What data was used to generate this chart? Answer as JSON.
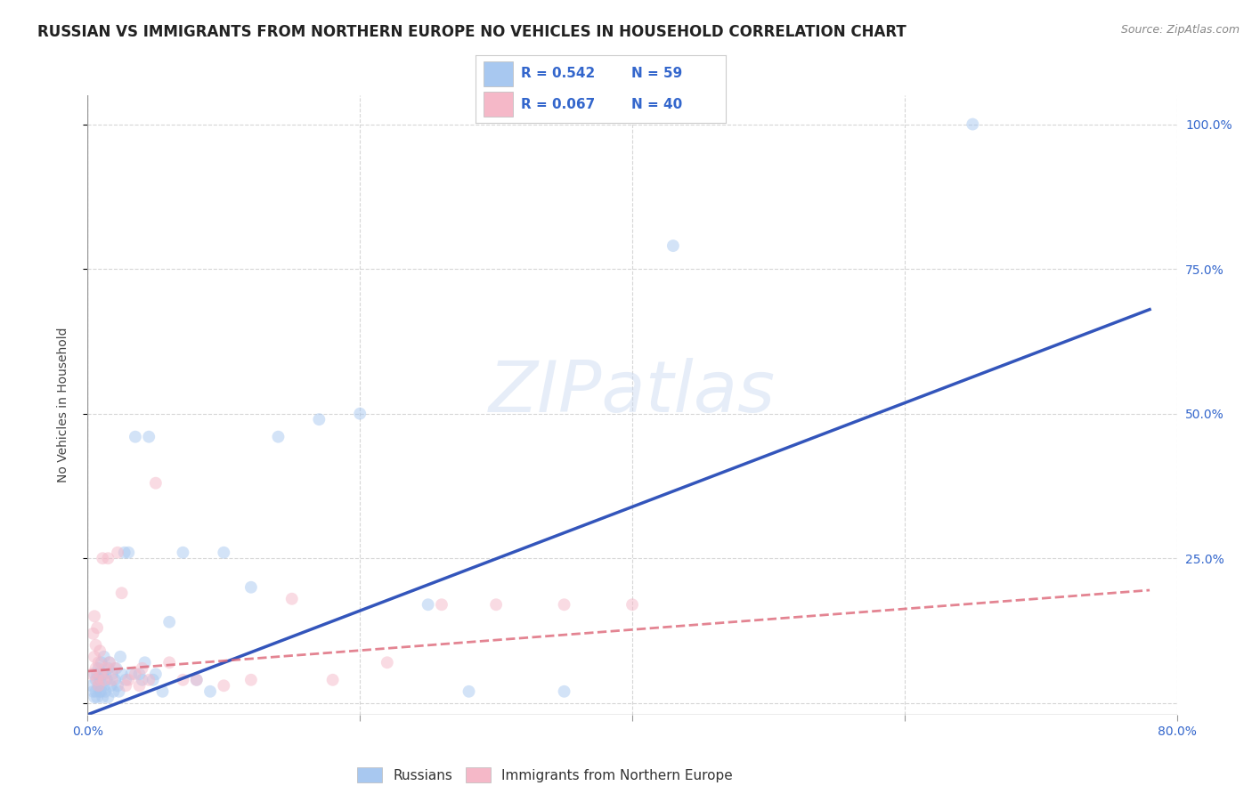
{
  "title": "RUSSIAN VS IMMIGRANTS FROM NORTHERN EUROPE NO VEHICLES IN HOUSEHOLD CORRELATION CHART",
  "source": "Source: ZipAtlas.com",
  "ylabel": "No Vehicles in Household",
  "xlim": [
    0.0,
    0.8
  ],
  "ylim": [
    -0.02,
    1.05
  ],
  "xticks": [
    0.0,
    0.2,
    0.4,
    0.6,
    0.8
  ],
  "xticklabels": [
    "0.0%",
    "",
    "",
    "",
    "80.0%"
  ],
  "yticks": [
    0.0,
    0.25,
    0.5,
    0.75,
    1.0
  ],
  "right_yticklabels": [
    "",
    "25.0%",
    "50.0%",
    "75.0%",
    "100.0%"
  ],
  "blue_color": "#A8C8F0",
  "pink_color": "#F5B8C8",
  "blue_line_color": "#3355BB",
  "pink_line_color": "#DD6677",
  "watermark": "ZIPatlas",
  "legend_R_blue": "0.542",
  "legend_N_blue": "59",
  "legend_R_pink": "0.067",
  "legend_N_pink": "40",
  "legend_label_blue": "Russians",
  "legend_label_pink": "Immigrants from Northern Europe",
  "blue_scatter_x": [
    0.003,
    0.004,
    0.005,
    0.005,
    0.006,
    0.006,
    0.007,
    0.007,
    0.008,
    0.008,
    0.009,
    0.009,
    0.01,
    0.01,
    0.011,
    0.011,
    0.012,
    0.012,
    0.013,
    0.013,
    0.014,
    0.015,
    0.015,
    0.016,
    0.017,
    0.018,
    0.019,
    0.02,
    0.021,
    0.022,
    0.023,
    0.024,
    0.025,
    0.027,
    0.028,
    0.03,
    0.032,
    0.035,
    0.038,
    0.04,
    0.042,
    0.045,
    0.048,
    0.05,
    0.055,
    0.06,
    0.07,
    0.08,
    0.09,
    0.1,
    0.12,
    0.14,
    0.17,
    0.2,
    0.25,
    0.28,
    0.35,
    0.43,
    0.65
  ],
  "blue_scatter_y": [
    0.03,
    0.02,
    0.05,
    0.01,
    0.04,
    0.02,
    0.05,
    0.01,
    0.06,
    0.03,
    0.02,
    0.04,
    0.07,
    0.02,
    0.05,
    0.01,
    0.08,
    0.03,
    0.05,
    0.02,
    0.04,
    0.06,
    0.01,
    0.07,
    0.03,
    0.05,
    0.02,
    0.04,
    0.06,
    0.03,
    0.02,
    0.08,
    0.05,
    0.26,
    0.04,
    0.26,
    0.05,
    0.46,
    0.05,
    0.04,
    0.07,
    0.46,
    0.04,
    0.05,
    0.02,
    0.14,
    0.26,
    0.04,
    0.02,
    0.26,
    0.2,
    0.46,
    0.49,
    0.5,
    0.17,
    0.02,
    0.02,
    0.79,
    1.0
  ],
  "pink_scatter_x": [
    0.003,
    0.004,
    0.005,
    0.005,
    0.006,
    0.006,
    0.007,
    0.007,
    0.008,
    0.008,
    0.009,
    0.01,
    0.011,
    0.012,
    0.013,
    0.015,
    0.016,
    0.018,
    0.02,
    0.022,
    0.025,
    0.028,
    0.03,
    0.035,
    0.038,
    0.04,
    0.045,
    0.05,
    0.06,
    0.07,
    0.08,
    0.1,
    0.12,
    0.15,
    0.18,
    0.22,
    0.26,
    0.3,
    0.35,
    0.4
  ],
  "pink_scatter_y": [
    0.05,
    0.12,
    0.08,
    0.15,
    0.06,
    0.1,
    0.04,
    0.13,
    0.07,
    0.03,
    0.09,
    0.05,
    0.25,
    0.04,
    0.06,
    0.25,
    0.07,
    0.04,
    0.06,
    0.26,
    0.19,
    0.03,
    0.04,
    0.05,
    0.03,
    0.06,
    0.04,
    0.38,
    0.07,
    0.04,
    0.04,
    0.03,
    0.04,
    0.18,
    0.04,
    0.07,
    0.17,
    0.17,
    0.17,
    0.17
  ],
  "blue_line_x0": 0.0,
  "blue_line_y0": -0.02,
  "blue_line_x1": 0.78,
  "blue_line_y1": 0.68,
  "pink_line_x0": 0.0,
  "pink_line_y0": 0.055,
  "pink_line_x1": 0.78,
  "pink_line_y1": 0.195,
  "background_color": "#FFFFFF",
  "grid_color": "#CCCCCC",
  "title_fontsize": 12,
  "axis_label_fontsize": 10,
  "tick_fontsize": 10,
  "scatter_size": 100,
  "scatter_alpha": 0.5
}
